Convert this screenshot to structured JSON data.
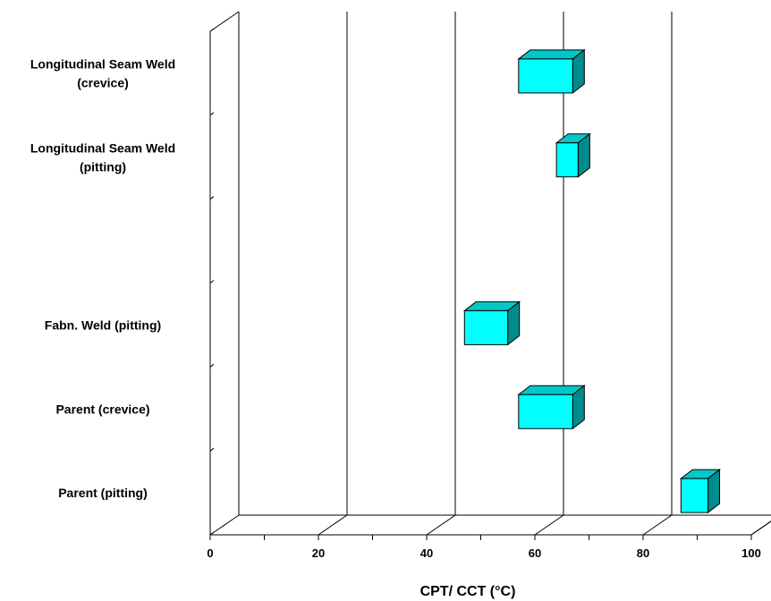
{
  "chart_data": {
    "type": "bar",
    "orientation": "horizontal-range",
    "categories": [
      [
        "Longitudinal Seam Weld",
        "(crevice)"
      ],
      [
        "Longitudinal Seam Weld",
        "(pitting)"
      ],
      [
        ""
      ],
      [
        "Fabn. Weld (pitting)"
      ],
      [
        "Parent (crevice)"
      ],
      [
        "Parent (pitting)"
      ]
    ],
    "ranges": [
      {
        "low": 56,
        "high": 66
      },
      {
        "low": 63,
        "high": 67
      },
      null,
      {
        "low": 46,
        "high": 54
      },
      {
        "low": 56,
        "high": 66
      },
      {
        "low": 86,
        "high": 91
      }
    ],
    "xlabel": "CPT/ CCT (°C)",
    "xlim": [
      0,
      100
    ],
    "xticks": [
      "0",
      "20",
      "40",
      "60",
      "80",
      "100"
    ],
    "grid": true,
    "colors": {
      "front": "#00ffff",
      "top": "#00c8c8",
      "side": "#008c8c"
    }
  }
}
